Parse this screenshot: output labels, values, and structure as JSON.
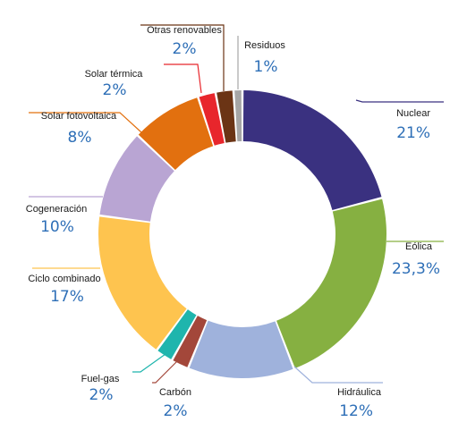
{
  "chart_data": {
    "type": "pie",
    "subtype": "donut",
    "slices": [
      {
        "label": "Nuclear",
        "value_text": "21%",
        "value": 21,
        "color": "#3a3180"
      },
      {
        "label": "Eólica",
        "value_text": "23,3%",
        "value": 23.3,
        "color": "#86b041"
      },
      {
        "label": "Hidráulica",
        "value_text": "12%",
        "value": 12,
        "color": "#9fb2dc"
      },
      {
        "label": "Carbón",
        "value_text": "2%",
        "value": 2,
        "color": "#a3473a"
      },
      {
        "label": "Fuel-gas",
        "value_text": "2%",
        "value": 2,
        "color": "#1fb5ad"
      },
      {
        "label": "Ciclo combinado",
        "value_text": "17%",
        "value": 17,
        "color": "#fec44f"
      },
      {
        "label": "Cogeneración",
        "value_text": "10%",
        "value": 10,
        "color": "#b9a5d3"
      },
      {
        "label": "Solar fotovoltaica",
        "value_text": "8%",
        "value": 8,
        "color": "#e2700f"
      },
      {
        "label": "Solar térmica",
        "value_text": "2%",
        "value": 2,
        "color": "#e8262c"
      },
      {
        "label": "Otras renovables",
        "value_text": "2%",
        "value": 2,
        "color": "#6b3415"
      },
      {
        "label": "Residuos",
        "value_text": "1%",
        "value": 1,
        "color": "#a6a6a6"
      }
    ]
  }
}
